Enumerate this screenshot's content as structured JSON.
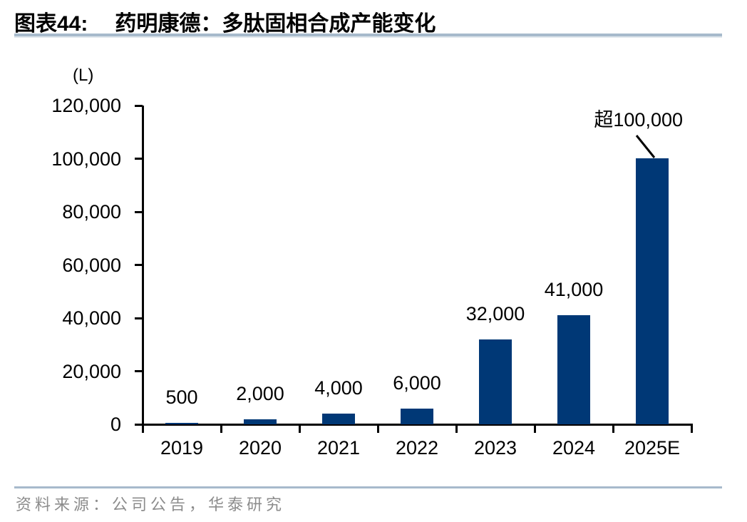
{
  "header": {
    "label": "图表44:",
    "title": "药明康德：多肽固相合成产能变化"
  },
  "chart_data": {
    "type": "bar",
    "title": "药明康德：多肽固相合成产能变化",
    "unit_label": "(L)",
    "categories": [
      "2019",
      "2020",
      "2021",
      "2022",
      "2023",
      "2024",
      "2025E"
    ],
    "values": [
      500,
      2000,
      4000,
      6000,
      32000,
      41000,
      100000
    ],
    "data_labels": [
      "500",
      "2,000",
      "4,000",
      "6,000",
      "32,000",
      "41,000",
      ""
    ],
    "annotation": {
      "text": "超100,000",
      "target_category": "2025E",
      "target_value": 100000
    },
    "ylim": [
      0,
      120000
    ],
    "ytick_interval": 20000,
    "ytick_labels": [
      "0",
      "20,000",
      "40,000",
      "60,000",
      "80,000",
      "100,000",
      "120,000"
    ],
    "grid": false,
    "legend": "none",
    "bar_color": "#003876"
  },
  "footer": {
    "source": "资料来源：公司公告，华泰研究"
  },
  "colors": {
    "bar": "#003876",
    "separator": "#a7bacc",
    "axis": "#000000",
    "source_text": "#8c8c8c",
    "title_text": "#000000"
  }
}
